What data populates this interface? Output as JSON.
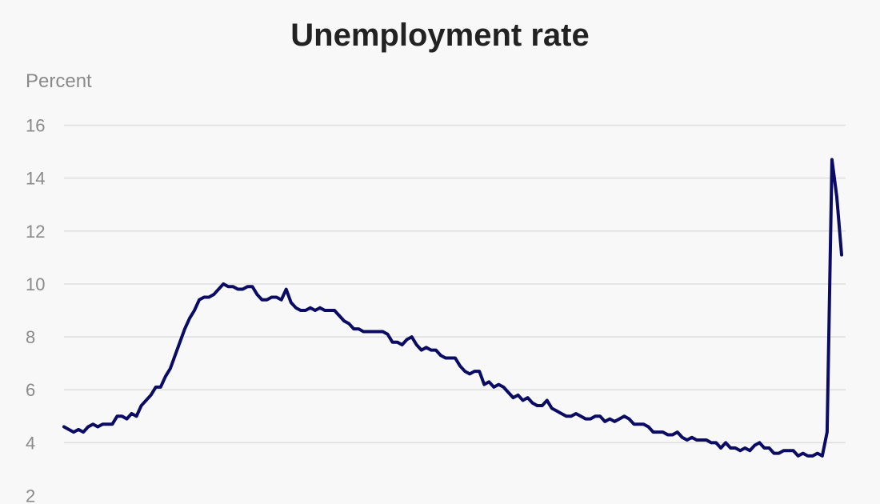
{
  "chart_data": {
    "type": "line",
    "title": "Unemployment rate",
    "ylabel": "Percent",
    "xlabel": "",
    "ylim": [
      2,
      16
    ],
    "yticks": [
      2,
      4,
      6,
      8,
      10,
      12,
      14,
      16
    ],
    "grid": true,
    "colors": {
      "line": "#0b0b63",
      "grid": "#dedede",
      "background": "#f8f8f8"
    },
    "series": [
      {
        "values": [
          4.6,
          4.5,
          4.4,
          4.5,
          4.4,
          4.6,
          4.7,
          4.6,
          4.7,
          4.7,
          4.7,
          5.0,
          5.0,
          4.9,
          5.1,
          5.0,
          5.4,
          5.6,
          5.8,
          6.1,
          6.1,
          6.5,
          6.8,
          7.3,
          7.8,
          8.3,
          8.7,
          9.0,
          9.4,
          9.5,
          9.5,
          9.6,
          9.8,
          10.0,
          9.9,
          9.9,
          9.8,
          9.8,
          9.9,
          9.9,
          9.6,
          9.4,
          9.4,
          9.5,
          9.5,
          9.4,
          9.8,
          9.3,
          9.1,
          9.0,
          9.0,
          9.1,
          9.0,
          9.1,
          9.0,
          9.0,
          9.0,
          8.8,
          8.6,
          8.5,
          8.3,
          8.3,
          8.2,
          8.2,
          8.2,
          8.2,
          8.2,
          8.1,
          7.8,
          7.8,
          7.7,
          7.9,
          8.0,
          7.7,
          7.5,
          7.6,
          7.5,
          7.5,
          7.3,
          7.2,
          7.2,
          7.2,
          6.9,
          6.7,
          6.6,
          6.7,
          6.7,
          6.2,
          6.3,
          6.1,
          6.2,
          6.1,
          5.9,
          5.7,
          5.8,
          5.6,
          5.7,
          5.5,
          5.4,
          5.4,
          5.6,
          5.3,
          5.2,
          5.1,
          5.0,
          5.0,
          5.1,
          5.0,
          4.9,
          4.9,
          5.0,
          5.0,
          4.8,
          4.9,
          4.8,
          4.9,
          5.0,
          4.9,
          4.7,
          4.7,
          4.7,
          4.6,
          4.4,
          4.4,
          4.4,
          4.3,
          4.3,
          4.4,
          4.2,
          4.1,
          4.2,
          4.1,
          4.1,
          4.1,
          4.0,
          4.0,
          3.8,
          4.0,
          3.8,
          3.8,
          3.7,
          3.8,
          3.7,
          3.9,
          4.0,
          3.8,
          3.8,
          3.6,
          3.6,
          3.7,
          3.7,
          3.7,
          3.5,
          3.6,
          3.5,
          3.5,
          3.6,
          3.5,
          4.4,
          14.7,
          13.3,
          11.1
        ]
      }
    ]
  }
}
